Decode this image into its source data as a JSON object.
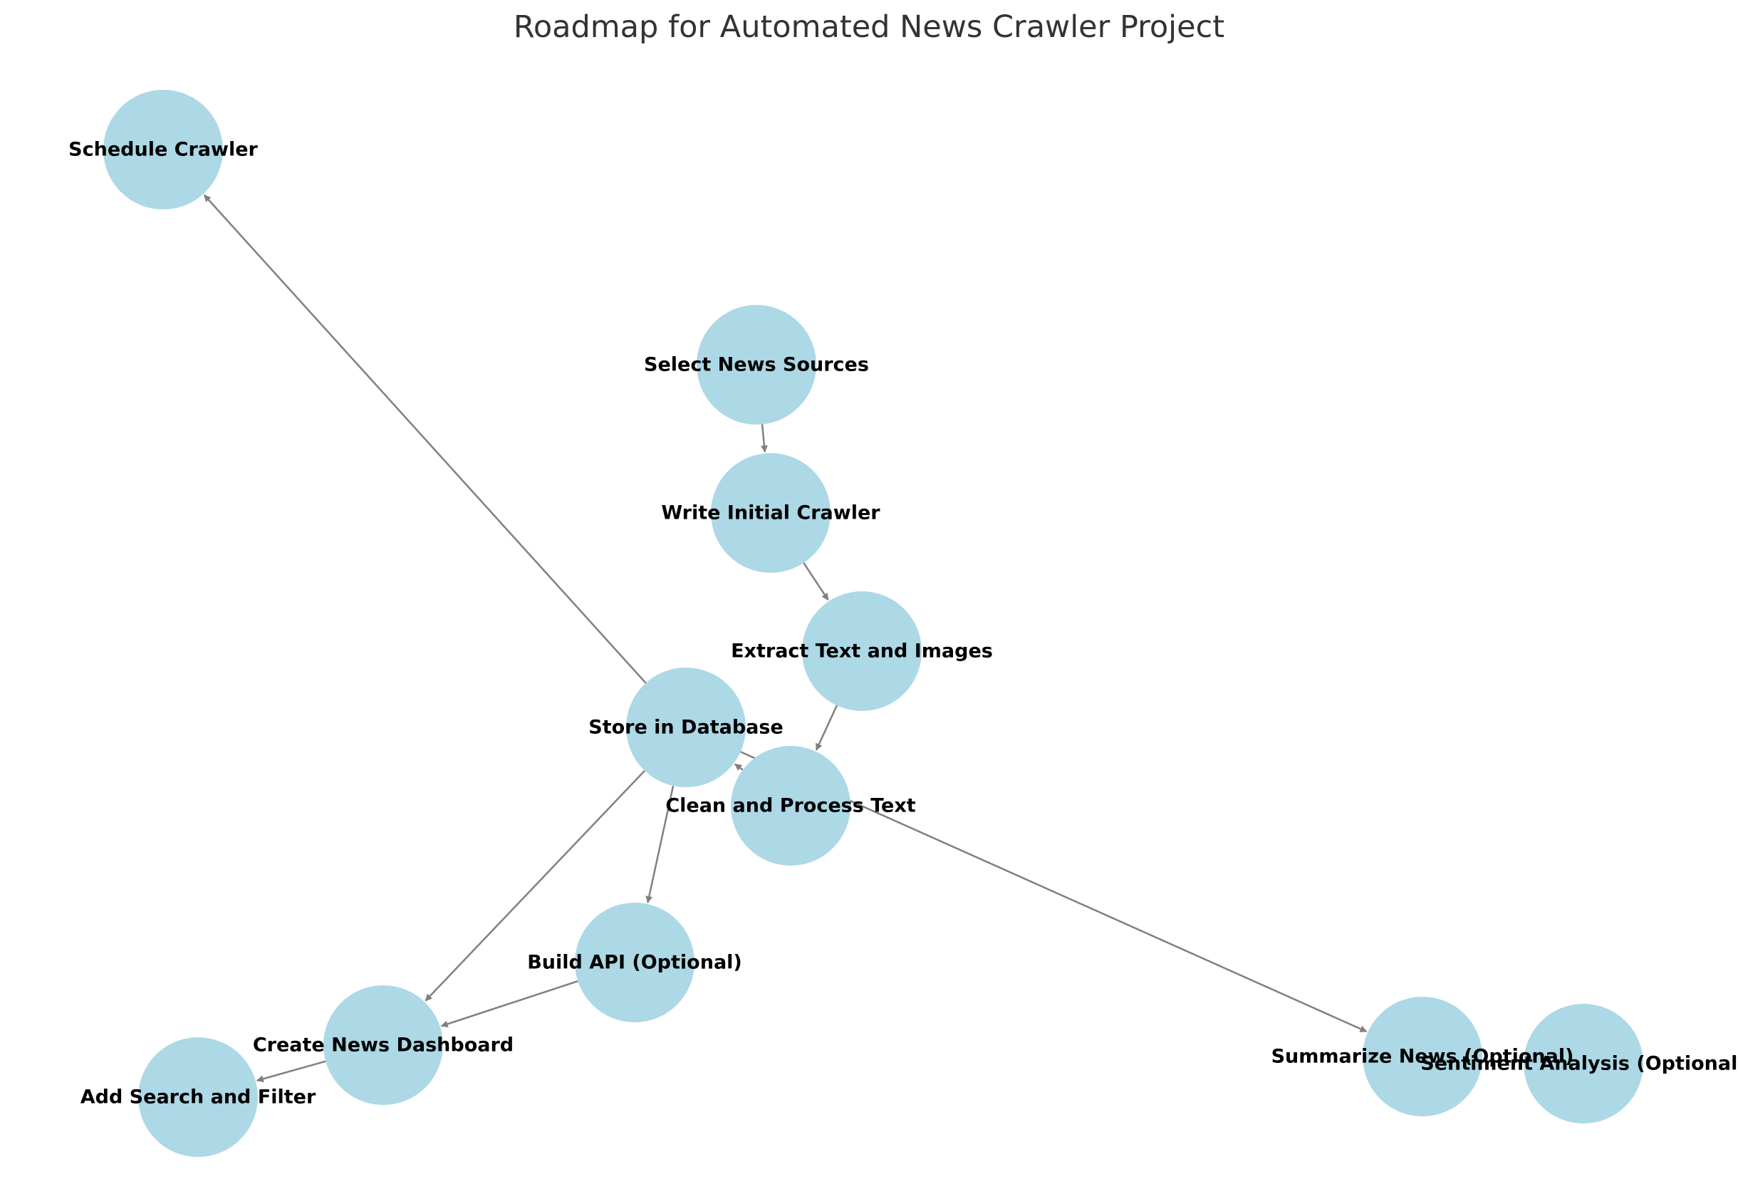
{
  "title": "Roadmap for Automated News Crawler Project",
  "colors": {
    "node_fill": "#add8e6",
    "edge": "#808080",
    "label": "#000000",
    "title": "#333333"
  },
  "nodes": [
    {
      "id": "schedule",
      "label": "Schedule Crawler"
    },
    {
      "id": "select",
      "label": "Select News Sources"
    },
    {
      "id": "write",
      "label": "Write Initial Crawler"
    },
    {
      "id": "extract",
      "label": "Extract Text and Images"
    },
    {
      "id": "store",
      "label": "Store in Database"
    },
    {
      "id": "clean",
      "label": "Clean and Process Text"
    },
    {
      "id": "api",
      "label": "Build API (Optional)"
    },
    {
      "id": "dashboard",
      "label": "Create News Dashboard"
    },
    {
      "id": "search",
      "label": "Add Search and Filter"
    },
    {
      "id": "summarize",
      "label": "Summarize News (Optional)"
    },
    {
      "id": "sentiment",
      "label": "Sentiment Analysis (Optional)"
    }
  ],
  "edges": [
    {
      "from": "select",
      "to": "write"
    },
    {
      "from": "write",
      "to": "extract"
    },
    {
      "from": "extract",
      "to": "clean"
    },
    {
      "from": "clean",
      "to": "store"
    },
    {
      "from": "store",
      "to": "schedule"
    },
    {
      "from": "store",
      "to": "api"
    },
    {
      "from": "store",
      "to": "dashboard"
    },
    {
      "from": "store",
      "to": "summarize"
    },
    {
      "from": "api",
      "to": "dashboard"
    },
    {
      "from": "dashboard",
      "to": "search"
    }
  ]
}
